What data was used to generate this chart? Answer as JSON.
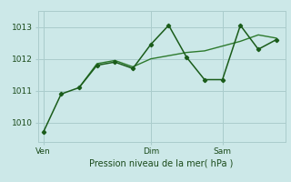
{
  "line1_x": [
    0,
    1,
    2,
    3,
    4,
    5,
    6,
    7,
    8,
    9,
    10,
    11,
    12,
    13
  ],
  "line1_y": [
    1009.7,
    1010.9,
    1011.1,
    1011.8,
    1011.9,
    1011.7,
    1012.45,
    1013.05,
    1012.05,
    1011.35,
    1011.35,
    1013.05,
    1012.3,
    1012.6
  ],
  "line2_x": [
    2,
    3,
    4,
    5,
    6,
    7,
    8,
    9,
    10,
    11,
    12,
    13
  ],
  "line2_y": [
    1011.1,
    1011.85,
    1011.95,
    1011.75,
    1012.0,
    1012.1,
    1012.2,
    1012.25,
    1012.4,
    1012.55,
    1012.75,
    1012.65
  ],
  "line1_color": "#1a5c1a",
  "line2_color": "#2d7a2d",
  "bg_color": "#cce8e8",
  "grid_color": "#aacccc",
  "xlabel": "Pression niveau de la mer( hPa )",
  "yticks": [
    1010,
    1011,
    1012,
    1013
  ],
  "xtick_positions": [
    0,
    6,
    10
  ],
  "xtick_labels": [
    "Ven",
    "Dim",
    "Sam"
  ],
  "vline_positions": [
    0,
    6,
    10
  ],
  "ylim": [
    1009.4,
    1013.5
  ],
  "xlim": [
    -0.3,
    13.5
  ]
}
